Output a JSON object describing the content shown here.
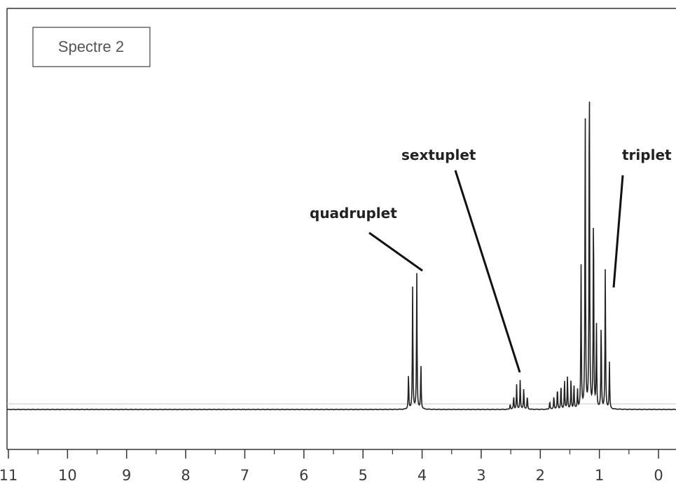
{
  "chart_data": {
    "type": "line",
    "title": "Spectre 2",
    "xlabel": "",
    "ylabel": "",
    "xlim": [
      11,
      0
    ],
    "x_reversed": true,
    "x_ticks": [
      "11",
      "10",
      "9",
      "8",
      "7",
      "6",
      "5",
      "4",
      "3",
      "2",
      "1",
      "0"
    ],
    "grid": false,
    "series": [
      {
        "signals": [
          {
            "center": 4.12,
            "multiplicity": "quadruplet",
            "peaks": [
              {
                "x": 4.23,
                "y": 0.13
              },
              {
                "x": 4.16,
                "y": 0.45
              },
              {
                "x": 4.09,
                "y": 0.5
              },
              {
                "x": 4.02,
                "y": 0.17
              }
            ]
          },
          {
            "center": 2.34,
            "multiplicity": "sextuplet",
            "peaks": [
              {
                "x": 2.51,
                "y": 0.02
              },
              {
                "x": 2.45,
                "y": 0.05
              },
              {
                "x": 2.4,
                "y": 0.09
              },
              {
                "x": 2.34,
                "y": 0.11
              },
              {
                "x": 2.28,
                "y": 0.08
              },
              {
                "x": 2.22,
                "y": 0.05
              }
            ]
          },
          {
            "center": 1.6,
            "multiplicity": "multiplet",
            "peaks": [
              {
                "x": 1.84,
                "y": 0.03
              },
              {
                "x": 1.77,
                "y": 0.05
              },
              {
                "x": 1.71,
                "y": 0.08
              },
              {
                "x": 1.65,
                "y": 0.09
              },
              {
                "x": 1.59,
                "y": 0.11
              },
              {
                "x": 1.54,
                "y": 0.12
              },
              {
                "x": 1.48,
                "y": 0.11
              },
              {
                "x": 1.43,
                "y": 0.09
              },
              {
                "x": 1.37,
                "y": 0.07
              }
            ]
          },
          {
            "center": 1.22,
            "multiplicity": "multiplet",
            "peaks": [
              {
                "x": 1.31,
                "y": 0.52
              },
              {
                "x": 1.24,
                "y": 1.11
              },
              {
                "x": 1.17,
                "y": 1.33
              },
              {
                "x": 1.1,
                "y": 0.77
              },
              {
                "x": 1.05,
                "y": 0.31
              }
            ]
          },
          {
            "center": 0.9,
            "multiplicity": "triplet",
            "peaks": [
              {
                "x": 0.97,
                "y": 0.32
              },
              {
                "x": 0.9,
                "y": 0.52
              },
              {
                "x": 0.83,
                "y": 0.17
              }
            ]
          }
        ]
      }
    ],
    "annotations": [
      {
        "id": "quadruplet",
        "text": "quadruplet",
        "points_to_x": 4.1
      },
      {
        "id": "sextuplet",
        "text": "sextuplet",
        "points_to_x": 2.4
      },
      {
        "id": "triplet",
        "text": "triplet",
        "points_to_x": 0.85
      }
    ]
  }
}
